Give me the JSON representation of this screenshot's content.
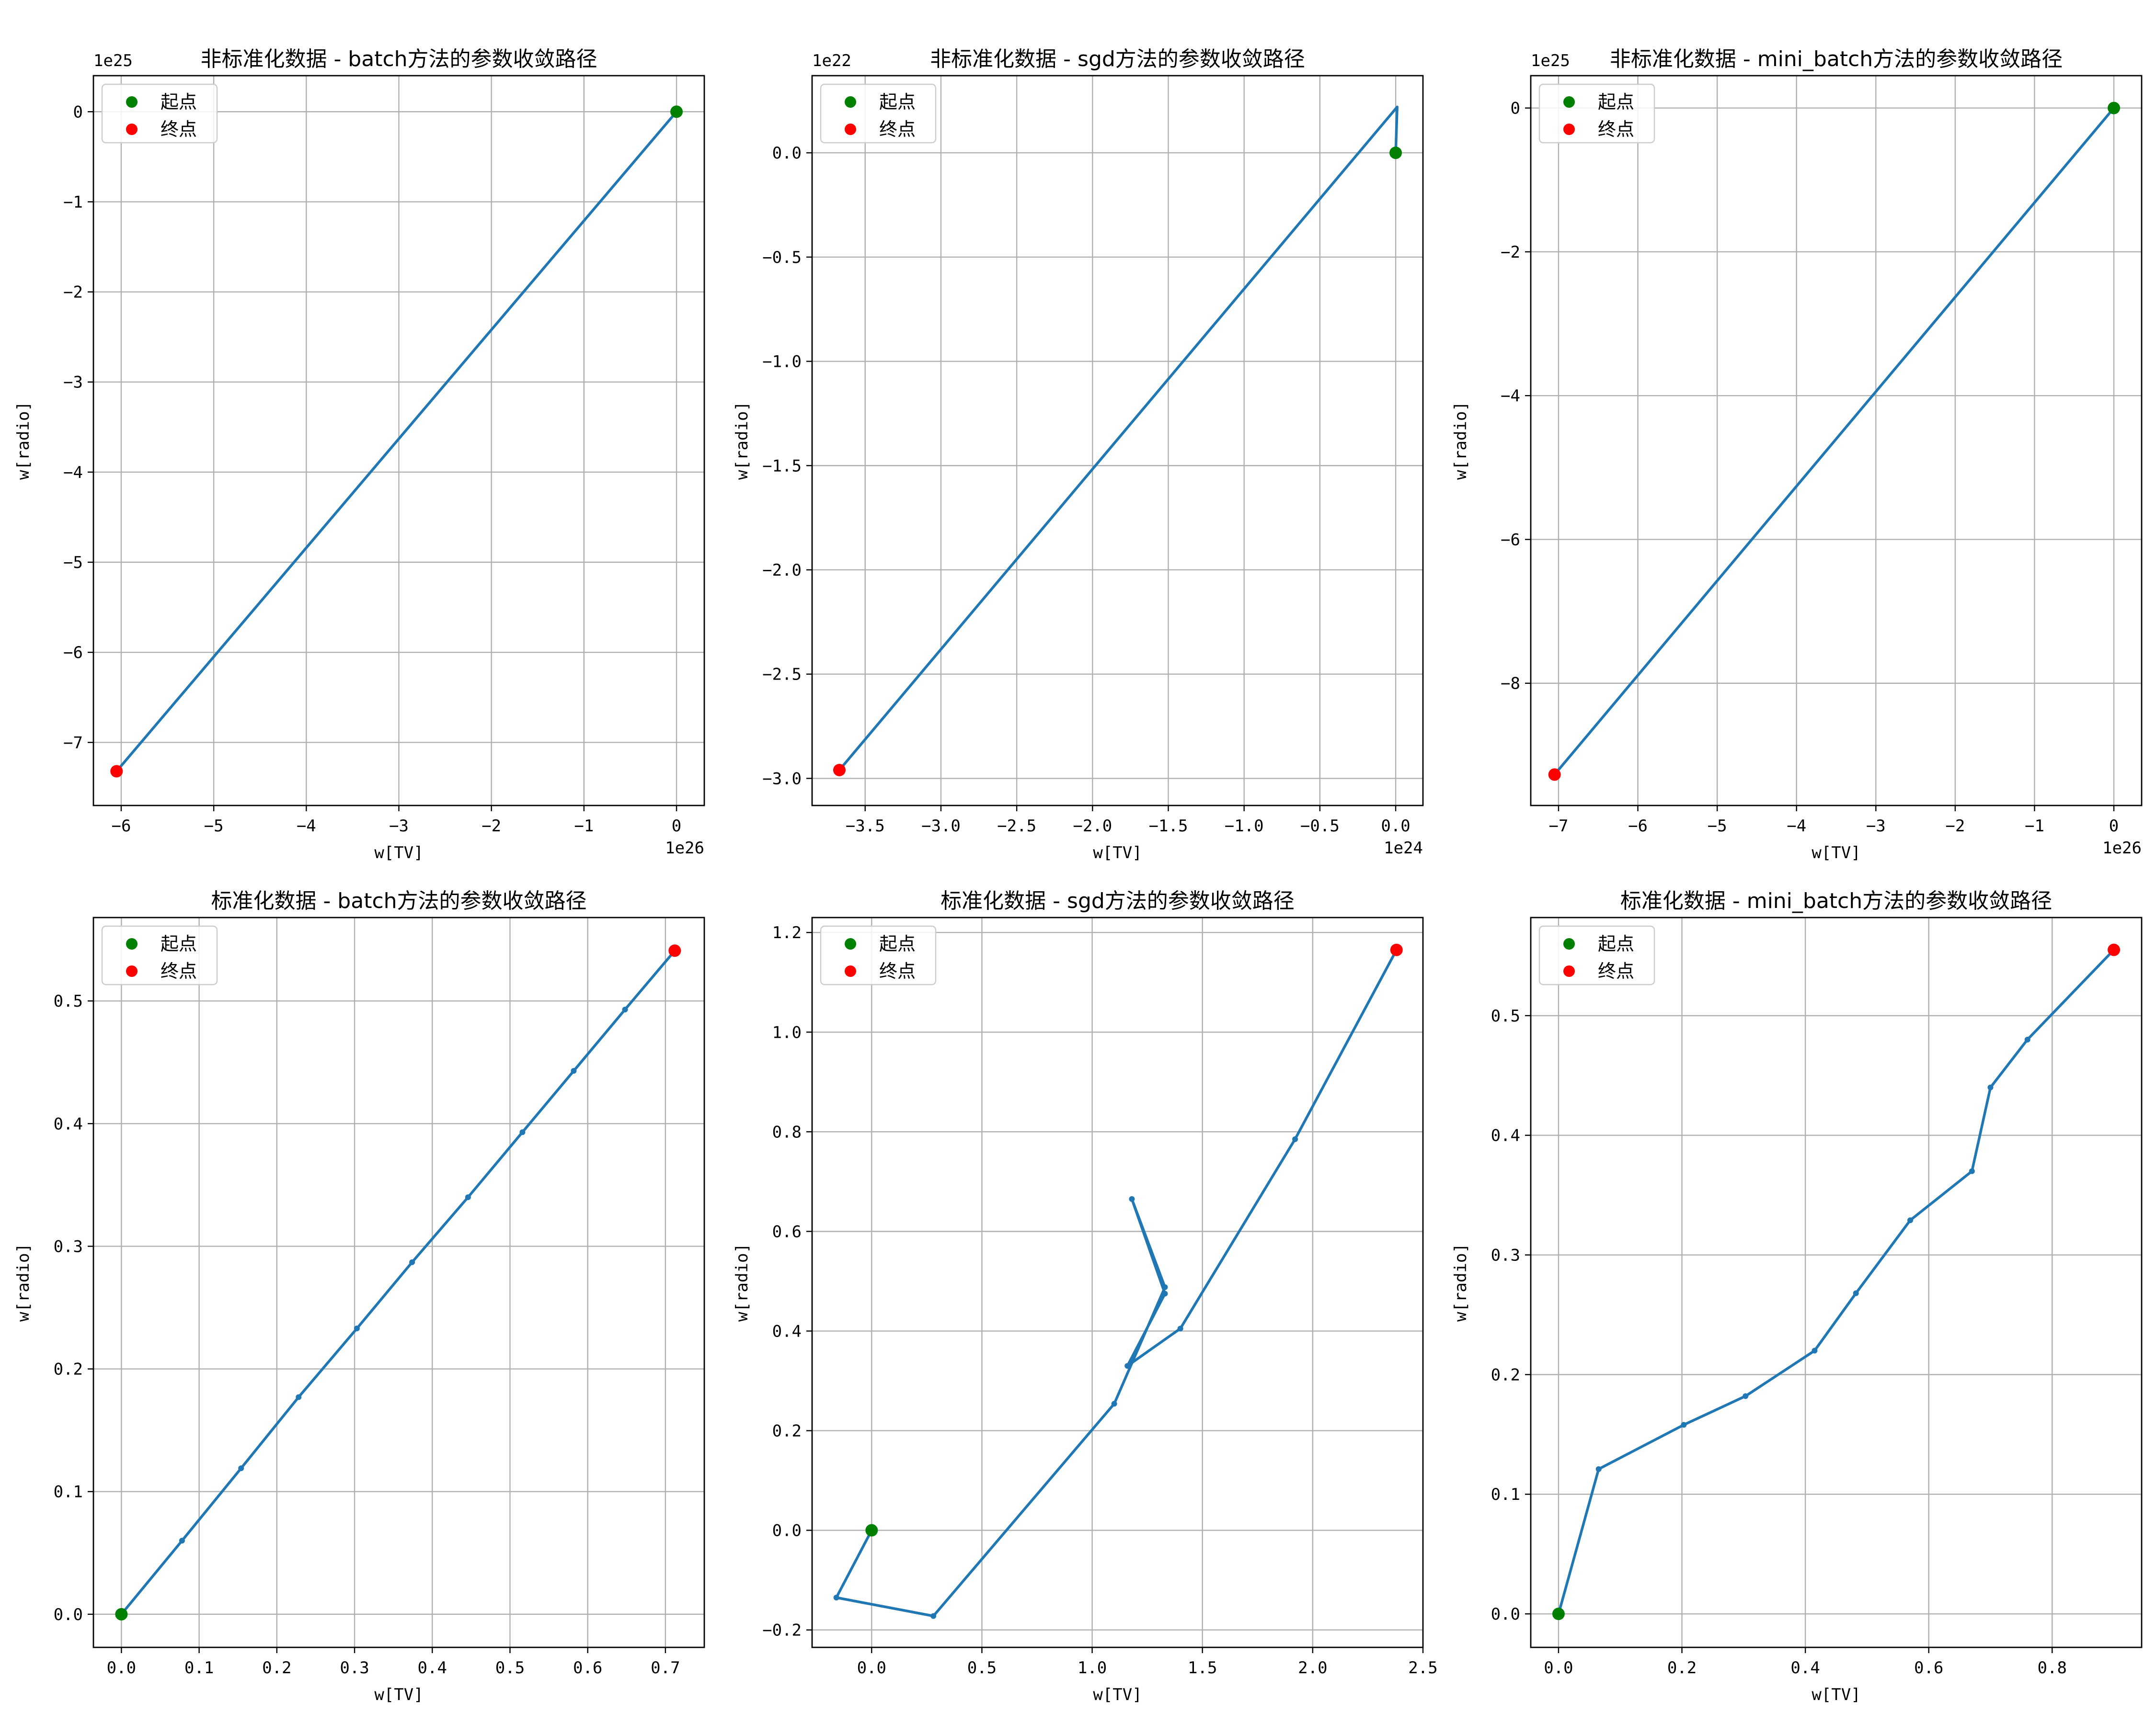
{
  "chart_data": [
    {
      "type": "line",
      "title": "非标准化数据 - batch方法的参数收敛路径",
      "xlabel": "w[TV]",
      "ylabel": "w[radio]",
      "x_offset_text": "1e26",
      "y_offset_text": "1e25",
      "xlim": [
        -6.3,
        0.3
      ],
      "ylim": [
        -7.7,
        0.4
      ],
      "xticks": [
        -6,
        -5,
        -4,
        -3,
        -2,
        -1,
        0
      ],
      "xtick_labels": [
        "−6",
        "−5",
        "−4",
        "−3",
        "−2",
        "−1",
        "0"
      ],
      "yticks": [
        -7,
        -6,
        -5,
        -4,
        -3,
        -2,
        -1,
        0
      ],
      "ytick_labels": [
        "−7",
        "−6",
        "−5",
        "−4",
        "−3",
        "−2",
        "−1",
        "0"
      ],
      "grid": true,
      "legend": "upper-left",
      "series": [
        {
          "x": [
            0,
            -6.05
          ],
          "y": [
            0,
            -7.32
          ]
        }
      ],
      "start": [
        0,
        0
      ],
      "end": [
        -6.05,
        -7.32
      ],
      "markers": false
    },
    {
      "type": "line",
      "title": "非标准化数据 - sgd方法的参数收敛路径",
      "xlabel": "w[TV]",
      "ylabel": "w[radio]",
      "x_offset_text": "1e24",
      "y_offset_text": "1e22",
      "xlim": [
        -3.85,
        0.18
      ],
      "ylim": [
        -3.13,
        0.37
      ],
      "xticks": [
        -3.5,
        -3.0,
        -2.5,
        -2.0,
        -1.5,
        -1.0,
        -0.5,
        0.0
      ],
      "xtick_labels": [
        "−3.5",
        "−3.0",
        "−2.5",
        "−2.0",
        "−1.5",
        "−1.0",
        "−0.5",
        "0.0"
      ],
      "yticks": [
        -3.0,
        -2.5,
        -2.0,
        -1.5,
        -1.0,
        -0.5,
        0.0
      ],
      "ytick_labels": [
        "−3.0",
        "−2.5",
        "−2.0",
        "−1.5",
        "−1.0",
        "−0.5",
        "0.0"
      ],
      "grid": true,
      "legend": "upper-left",
      "series": [
        {
          "x": [
            0,
            0.01,
            -3.67
          ],
          "y": [
            0,
            0.22,
            -2.96
          ]
        }
      ],
      "start": [
        0,
        0
      ],
      "end": [
        -3.67,
        -2.96
      ],
      "markers": false
    },
    {
      "type": "line",
      "title": "非标准化数据 - mini_batch方法的参数收敛路径",
      "xlabel": "w[TV]",
      "ylabel": "w[radio]",
      "x_offset_text": "1e26",
      "y_offset_text": "1e25",
      "xlim": [
        -7.35,
        0.35
      ],
      "ylim": [
        -9.7,
        0.45
      ],
      "xticks": [
        -7,
        -6,
        -5,
        -4,
        -3,
        -2,
        -1,
        0
      ],
      "xtick_labels": [
        "−7",
        "−6",
        "−5",
        "−4",
        "−3",
        "−2",
        "−1",
        "0"
      ],
      "yticks": [
        -8,
        -6,
        -4,
        -2,
        0
      ],
      "ytick_labels": [
        "−8",
        "−6",
        "−4",
        "−2",
        "0"
      ],
      "grid": true,
      "legend": "upper-left",
      "series": [
        {
          "x": [
            0,
            -7.05
          ],
          "y": [
            0,
            -9.27
          ]
        }
      ],
      "start": [
        0,
        0
      ],
      "end": [
        -7.05,
        -9.27
      ],
      "markers": false
    },
    {
      "type": "line",
      "title": "标准化数据 - batch方法的参数收敛路径",
      "xlabel": "w[TV]",
      "ylabel": "w[radio]",
      "x_offset_text": "",
      "y_offset_text": "",
      "xlim": [
        -0.036,
        0.75
      ],
      "ylim": [
        -0.027,
        0.568
      ],
      "xticks": [
        0.0,
        0.1,
        0.2,
        0.3,
        0.4,
        0.5,
        0.6,
        0.7
      ],
      "xtick_labels": [
        "0.0",
        "0.1",
        "0.2",
        "0.3",
        "0.4",
        "0.5",
        "0.6",
        "0.7"
      ],
      "yticks": [
        0.0,
        0.1,
        0.2,
        0.3,
        0.4,
        0.5
      ],
      "ytick_labels": [
        "0.0",
        "0.1",
        "0.2",
        "0.3",
        "0.4",
        "0.5"
      ],
      "grid": true,
      "legend": "upper-left",
      "series": [
        {
          "x": [
            0,
            0.078,
            0.154,
            0.228,
            0.303,
            0.374,
            0.446,
            0.516,
            0.582,
            0.648,
            0.712
          ],
          "y": [
            0,
            0.06,
            0.119,
            0.177,
            0.233,
            0.287,
            0.34,
            0.393,
            0.443,
            0.493,
            0.541
          ]
        }
      ],
      "start": [
        0,
        0
      ],
      "end": [
        0.712,
        0.541
      ],
      "markers": true
    },
    {
      "type": "line",
      "title": "标准化数据 - sgd方法的参数收敛路径",
      "xlabel": "w[TV]",
      "ylabel": "w[radio]",
      "x_offset_text": "",
      "y_offset_text": "",
      "xlim": [
        -0.27,
        2.5
      ],
      "ylim": [
        -0.235,
        1.23
      ],
      "xticks": [
        0.0,
        0.5,
        1.0,
        1.5,
        2.0,
        2.5
      ],
      "xtick_labels": [
        "0.0",
        "0.5",
        "1.0",
        "1.5",
        "2.0",
        "2.5"
      ],
      "yticks": [
        -0.2,
        0.0,
        0.2,
        0.4,
        0.6,
        0.8,
        1.0,
        1.2
      ],
      "ytick_labels": [
        "−0.2",
        "0.0",
        "0.2",
        "0.4",
        "0.6",
        "0.8",
        "1.0",
        "1.2"
      ],
      "grid": true,
      "legend": "upper-left",
      "series": [
        {
          "x": [
            0,
            -0.16,
            0.28,
            1.1,
            1.33,
            1.18,
            1.33,
            1.16,
            1.4,
            1.92,
            2.38
          ],
          "y": [
            0,
            -0.135,
            -0.172,
            0.254,
            0.488,
            0.665,
            0.475,
            0.33,
            0.405,
            0.785,
            1.165
          ]
        }
      ],
      "start": [
        0,
        0
      ],
      "end": [
        2.38,
        1.165
      ],
      "markers": true
    },
    {
      "type": "line",
      "title": "标准化数据 - mini_batch方法的参数收敛路径",
      "xlabel": "w[TV]",
      "ylabel": "w[radio]",
      "x_offset_text": "",
      "y_offset_text": "",
      "xlim": [
        -0.045,
        0.945
      ],
      "ylim": [
        -0.028,
        0.582
      ],
      "xticks": [
        0.0,
        0.2,
        0.4,
        0.6,
        0.8
      ],
      "xtick_labels": [
        "0.0",
        "0.2",
        "0.4",
        "0.6",
        "0.8"
      ],
      "yticks": [
        0.0,
        0.1,
        0.2,
        0.3,
        0.4,
        0.5
      ],
      "ytick_labels": [
        "0.0",
        "0.1",
        "0.2",
        "0.3",
        "0.4",
        "0.5"
      ],
      "grid": true,
      "legend": "upper-left",
      "series": [
        {
          "x": [
            0,
            0.065,
            0.203,
            0.303,
            0.415,
            0.482,
            0.57,
            0.67,
            0.7,
            0.76,
            0.9
          ],
          "y": [
            0,
            0.121,
            0.158,
            0.182,
            0.22,
            0.268,
            0.329,
            0.37,
            0.44,
            0.48,
            0.555
          ]
        }
      ],
      "start": [
        0,
        0
      ],
      "end": [
        0.9,
        0.555
      ],
      "markers": true
    }
  ],
  "legend": {
    "start_label": "起点",
    "end_label": "终点"
  },
  "colors": {
    "line": "#1f77b4",
    "start": "#008000",
    "end": "#ff0000",
    "grid": "#b0b0b0"
  }
}
